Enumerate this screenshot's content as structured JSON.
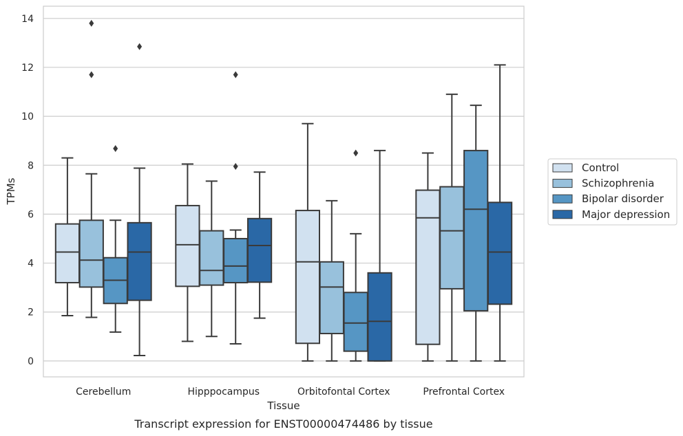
{
  "chart_data": {
    "type": "box",
    "title": "",
    "caption": "Transcript expression for ENST00000474486 by tissue",
    "xlabel": "Tissue",
    "ylabel": "TPMs",
    "ylim": [
      -0.65,
      14.5
    ],
    "yticks": [
      0,
      2,
      4,
      6,
      8,
      10,
      12,
      14
    ],
    "grid": "horizontal",
    "legend_position": "right",
    "categories": [
      "Cerebellum",
      "Hipppocampus",
      "Orbitofontal Cortex",
      "Prefrontal Cortex"
    ],
    "series": [
      {
        "name": "Control",
        "color": "#d1e1f0",
        "boxes": [
          {
            "whislo": 1.85,
            "q1": 3.2,
            "med": 4.45,
            "q3": 5.6,
            "whishi": 8.3,
            "fliers": []
          },
          {
            "whislo": 0.8,
            "q1": 3.05,
            "med": 4.75,
            "q3": 6.35,
            "whishi": 8.05,
            "fliers": []
          },
          {
            "whislo": 0.0,
            "q1": 0.72,
            "med": 4.05,
            "q3": 6.15,
            "whishi": 9.7,
            "fliers": []
          },
          {
            "whislo": 0.0,
            "q1": 0.68,
            "med": 5.85,
            "q3": 6.98,
            "whishi": 8.5,
            "fliers": []
          }
        ]
      },
      {
        "name": "Schizophrenia",
        "color": "#98c1dc",
        "boxes": [
          {
            "whislo": 1.78,
            "q1": 3.02,
            "med": 4.12,
            "q3": 5.75,
            "whishi": 7.65,
            "fliers": [
              11.7,
              13.8
            ]
          },
          {
            "whislo": 1.0,
            "q1": 3.1,
            "med": 3.7,
            "q3": 5.32,
            "whishi": 7.35,
            "fliers": []
          },
          {
            "whislo": 0.0,
            "q1": 1.12,
            "med": 3.02,
            "q3": 4.05,
            "whishi": 6.55,
            "fliers": []
          },
          {
            "whislo": 0.0,
            "q1": 2.95,
            "med": 5.32,
            "q3": 7.12,
            "whishi": 10.9,
            "fliers": []
          }
        ]
      },
      {
        "name": "Bipolar disorder",
        "color": "#5696c4",
        "boxes": [
          {
            "whislo": 1.18,
            "q1": 2.35,
            "med": 3.3,
            "q3": 4.22,
            "whishi": 5.75,
            "fliers": [
              8.68
            ]
          },
          {
            "whislo": 0.7,
            "q1": 3.2,
            "med": 3.88,
            "q3": 5.0,
            "whishi": 5.35,
            "fliers": [
              7.95,
              11.7
            ]
          },
          {
            "whislo": 0.0,
            "q1": 0.4,
            "med": 1.55,
            "q3": 2.8,
            "whishi": 5.2,
            "fliers": [
              8.5
            ]
          },
          {
            "whislo": 0.0,
            "q1": 2.05,
            "med": 6.2,
            "q3": 8.6,
            "whishi": 10.45,
            "fliers": []
          }
        ]
      },
      {
        "name": "Major depression",
        "color": "#2a68a6",
        "boxes": [
          {
            "whislo": 0.22,
            "q1": 2.48,
            "med": 4.45,
            "q3": 5.65,
            "whishi": 7.88,
            "fliers": [
              12.85
            ]
          },
          {
            "whislo": 1.75,
            "q1": 3.22,
            "med": 4.72,
            "q3": 5.82,
            "whishi": 7.72,
            "fliers": []
          },
          {
            "whislo": 0.0,
            "q1": 0.0,
            "med": 1.62,
            "q3": 3.6,
            "whishi": 8.6,
            "fliers": []
          },
          {
            "whislo": 0.0,
            "q1": 2.32,
            "med": 4.45,
            "q3": 6.48,
            "whishi": 12.1,
            "fliers": []
          }
        ]
      }
    ]
  }
}
